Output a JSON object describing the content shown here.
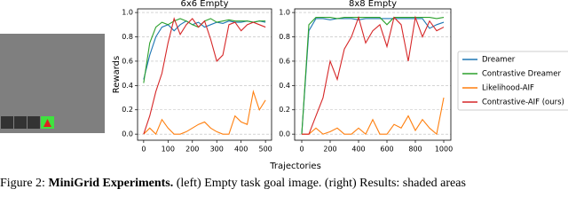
{
  "chart_data": [
    {
      "type": "line",
      "title": "6x6 Empty",
      "ylabel": "Rewards",
      "x": [
        0,
        25,
        50,
        75,
        100,
        125,
        150,
        175,
        200,
        225,
        250,
        275,
        300,
        325,
        350,
        375,
        400,
        425,
        450,
        475,
        500
      ],
      "series": [
        {
          "name": "Dreamer",
          "color": "#1f77b4",
          "values": [
            0.45,
            0.65,
            0.8,
            0.88,
            0.9,
            0.85,
            0.9,
            0.93,
            0.9,
            0.92,
            0.88,
            0.9,
            0.92,
            0.91,
            0.93,
            0.92,
            0.92,
            0.93,
            0.92,
            0.93,
            0.92
          ]
        },
        {
          "name": "Contrastive Dreamer",
          "color": "#2ca02c",
          "values": [
            0.42,
            0.75,
            0.88,
            0.92,
            0.9,
            0.93,
            0.95,
            0.93,
            0.9,
            0.88,
            0.93,
            0.95,
            0.92,
            0.93,
            0.94,
            0.93,
            0.93,
            0.93,
            0.92,
            0.93,
            0.93
          ]
        },
        {
          "name": "Likelihood-AIF",
          "color": "#ff7f0e",
          "values": [
            0.0,
            0.05,
            0.0,
            0.12,
            0.05,
            0.0,
            0.0,
            0.02,
            0.05,
            0.08,
            0.1,
            0.05,
            0.02,
            0.0,
            0.0,
            0.15,
            0.1,
            0.08,
            0.35,
            0.2,
            0.28
          ]
        },
        {
          "name": "Contrastive-AIF (ours)",
          "color": "#d62728",
          "values": [
            0.0,
            0.15,
            0.35,
            0.5,
            0.75,
            0.95,
            0.82,
            0.9,
            0.95,
            0.88,
            0.93,
            0.78,
            0.6,
            0.65,
            0.9,
            0.92,
            0.85,
            0.9,
            0.92,
            0.9,
            0.88
          ]
        }
      ],
      "xlim": [
        -25,
        525
      ],
      "xticks": [
        0,
        100,
        200,
        300,
        400,
        500
      ],
      "ylim": [
        -0.05,
        1.03
      ],
      "yticks": [
        {
          "value": 0,
          "label": "0.0"
        },
        0.2,
        0.4,
        0.6,
        0.8,
        {
          "value": 1,
          "label": "1.0"
        }
      ],
      "grid": true
    },
    {
      "type": "line",
      "title": "8x8 Empty",
      "legend": "right",
      "x": [
        0,
        50,
        100,
        150,
        200,
        250,
        300,
        350,
        400,
        450,
        500,
        550,
        600,
        650,
        700,
        750,
        800,
        850,
        900,
        950,
        1000
      ],
      "series": [
        {
          "name": "Dreamer",
          "color": "#1f77b4",
          "values": [
            0.0,
            0.85,
            0.95,
            0.95,
            0.94,
            0.95,
            0.95,
            0.95,
            0.94,
            0.95,
            0.95,
            0.95,
            0.95,
            0.95,
            0.95,
            0.95,
            0.95,
            0.95,
            0.87,
            0.9,
            0.92
          ]
        },
        {
          "name": "Contrastive Dreamer",
          "color": "#2ca02c",
          "values": [
            0.0,
            0.9,
            0.96,
            0.96,
            0.96,
            0.95,
            0.96,
            0.96,
            0.96,
            0.96,
            0.96,
            0.96,
            0.9,
            0.96,
            0.96,
            0.96,
            0.96,
            0.96,
            0.96,
            0.95,
            0.96
          ]
        },
        {
          "name": "Likelihood-AIF",
          "color": "#ff7f0e",
          "values": [
            0.0,
            0.0,
            0.05,
            0.0,
            0.02,
            0.05,
            0.0,
            0.0,
            0.05,
            0.0,
            0.12,
            0.0,
            0.0,
            0.08,
            0.05,
            0.15,
            0.03,
            0.12,
            0.05,
            0.0,
            0.3
          ]
        },
        {
          "name": "Contrastive-AIF (ours)",
          "color": "#d62728",
          "values": [
            0.0,
            0.0,
            0.15,
            0.3,
            0.6,
            0.45,
            0.7,
            0.8,
            0.96,
            0.75,
            0.85,
            0.9,
            0.72,
            0.96,
            0.9,
            0.6,
            0.96,
            0.8,
            0.93,
            0.85,
            0.88
          ]
        }
      ],
      "xlim": [
        -50,
        1050
      ],
      "xticks": [
        0,
        200,
        400,
        600,
        800,
        1000
      ],
      "ylim": [
        -0.05,
        1.03
      ],
      "yticks": [
        {
          "value": 0,
          "label": "0.0"
        },
        0.2,
        0.4,
        0.6,
        0.8,
        {
          "value": 1,
          "label": "1.0"
        }
      ],
      "grid": true
    }
  ],
  "figure": {
    "xlabel": "Trajectories"
  },
  "caption": {
    "label": "Figure 2:",
    "title": "MiniGrid Experiments.",
    "text": "(left) Empty task goal image. (right) Results: shaded areas"
  }
}
